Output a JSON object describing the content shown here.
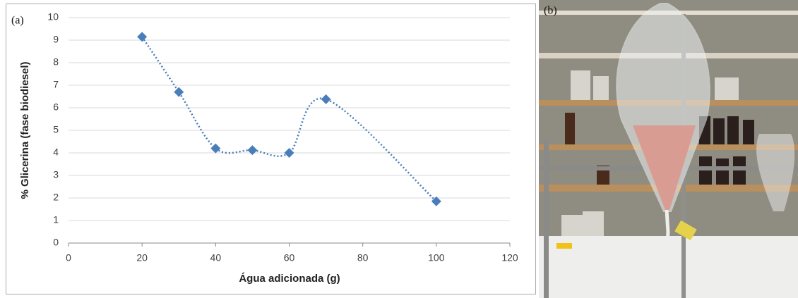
{
  "chart_data": {
    "type": "scatter",
    "panel_label": "(a)",
    "x_label": "Água adicionada (g)",
    "y_label": "% Glicerina (fase biodiesel)",
    "x": [
      20,
      30,
      40,
      50,
      60,
      70,
      100
    ],
    "values": [
      9.15,
      6.7,
      4.2,
      4.12,
      4.0,
      6.38,
      1.85
    ],
    "color": "#4a7ebb",
    "smooth": true,
    "line_style": "dotted",
    "grid": true,
    "xlim": [
      0,
      120
    ],
    "xticks": [
      0,
      20,
      40,
      60,
      80,
      100,
      120
    ],
    "ylim": [
      0,
      10
    ],
    "yticks": [
      0,
      1,
      2,
      3,
      4,
      5,
      6,
      7,
      8,
      9,
      10
    ]
  },
  "photo": {
    "label": "(b)"
  }
}
